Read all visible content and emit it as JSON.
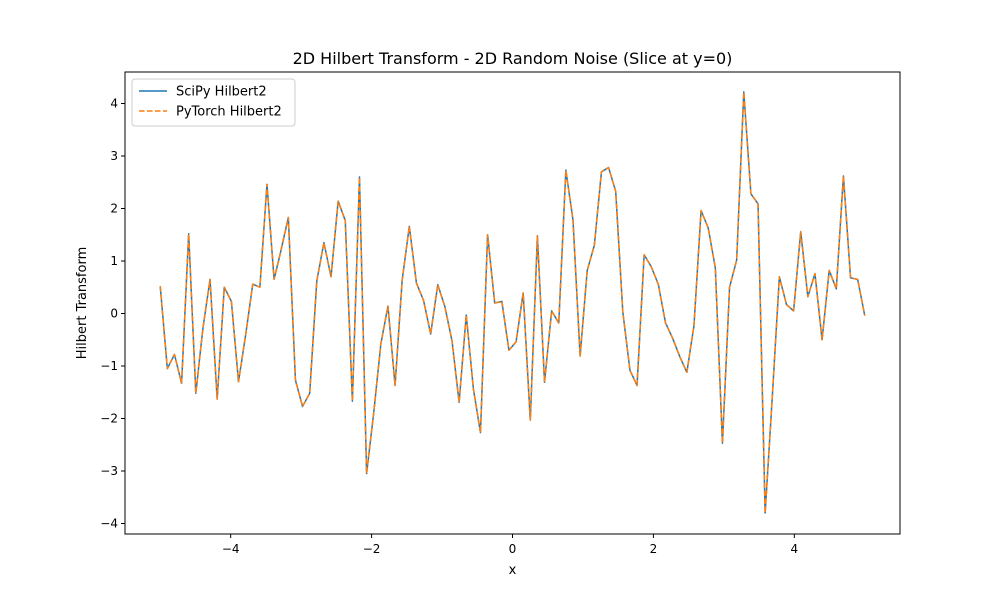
{
  "chart_data": {
    "type": "line",
    "title": "2D Hilbert Transform - 2D Random Noise (Slice at y=0)",
    "xlabel": "x",
    "ylabel": "Hilbert Transform",
    "xlim": [
      -5.5,
      5.5
    ],
    "ylim": [
      -4.2,
      4.6
    ],
    "xticks": [
      -4,
      -2,
      0,
      2,
      4
    ],
    "yticks": [
      -4,
      -3,
      -2,
      -1,
      0,
      1,
      2,
      3,
      4
    ],
    "grid": false,
    "legend": {
      "position": "top-left"
    },
    "x_range": {
      "start": -5,
      "end": 5,
      "count": 100
    },
    "series": [
      {
        "name": "SciPy Hilbert2",
        "color": "#1f77b4",
        "linestyle": "solid",
        "values": [
          0.52,
          -1.05,
          -0.78,
          -1.33,
          1.52,
          -1.52,
          -0.28,
          0.65,
          -1.63,
          0.5,
          0.23,
          -1.3,
          -0.41,
          0.56,
          0.5,
          2.46,
          0.65,
          1.22,
          1.83,
          -1.27,
          -1.77,
          -1.52,
          0.62,
          1.35,
          0.7,
          2.14,
          1.77,
          -1.67,
          2.6,
          -3.05,
          -1.89,
          -0.58,
          0.14,
          -1.37,
          0.64,
          1.66,
          0.58,
          0.25,
          -0.39,
          0.55,
          0.13,
          -0.52,
          -1.69,
          -0.03,
          -1.43,
          -2.27,
          1.5,
          0.2,
          0.23,
          -0.7,
          -0.54,
          0.39,
          -2.03,
          1.48,
          -1.31,
          0.05,
          -0.18,
          2.73,
          1.78,
          -0.81,
          0.82,
          1.3,
          2.7,
          2.78,
          2.33,
          0.03,
          -1.08,
          -1.37,
          1.12,
          0.89,
          0.55,
          -0.18,
          -0.47,
          -0.82,
          -1.12,
          -0.23,
          1.96,
          1.63,
          0.87,
          -2.47,
          0.5,
          1.02,
          4.22,
          2.28,
          2.09,
          -3.8,
          -1.6,
          0.7,
          0.17,
          0.05,
          1.56,
          0.32,
          0.76,
          -0.5,
          0.82,
          0.47,
          2.62,
          0.68,
          0.65,
          -0.04
        ]
      },
      {
        "name": "PyTorch Hilbert2",
        "color": "#ff7f0e",
        "linestyle": "dashed",
        "values": [
          0.52,
          -1.05,
          -0.78,
          -1.33,
          1.52,
          -1.52,
          -0.28,
          0.65,
          -1.63,
          0.5,
          0.23,
          -1.3,
          -0.41,
          0.56,
          0.5,
          2.46,
          0.65,
          1.22,
          1.83,
          -1.27,
          -1.77,
          -1.52,
          0.62,
          1.35,
          0.7,
          2.14,
          1.77,
          -1.67,
          2.6,
          -3.05,
          -1.89,
          -0.58,
          0.14,
          -1.37,
          0.64,
          1.66,
          0.58,
          0.25,
          -0.39,
          0.55,
          0.13,
          -0.52,
          -1.69,
          -0.03,
          -1.43,
          -2.27,
          1.5,
          0.2,
          0.23,
          -0.7,
          -0.54,
          0.39,
          -2.03,
          1.48,
          -1.31,
          0.05,
          -0.18,
          2.73,
          1.78,
          -0.81,
          0.82,
          1.3,
          2.7,
          2.78,
          2.33,
          0.03,
          -1.08,
          -1.37,
          1.12,
          0.89,
          0.55,
          -0.18,
          -0.47,
          -0.82,
          -1.12,
          -0.23,
          1.96,
          1.63,
          0.87,
          -2.47,
          0.5,
          1.02,
          4.22,
          2.28,
          2.09,
          -3.8,
          -1.6,
          0.7,
          0.17,
          0.05,
          1.56,
          0.32,
          0.76,
          -0.5,
          0.82,
          0.47,
          2.62,
          0.68,
          0.65,
          -0.04
        ]
      }
    ]
  }
}
